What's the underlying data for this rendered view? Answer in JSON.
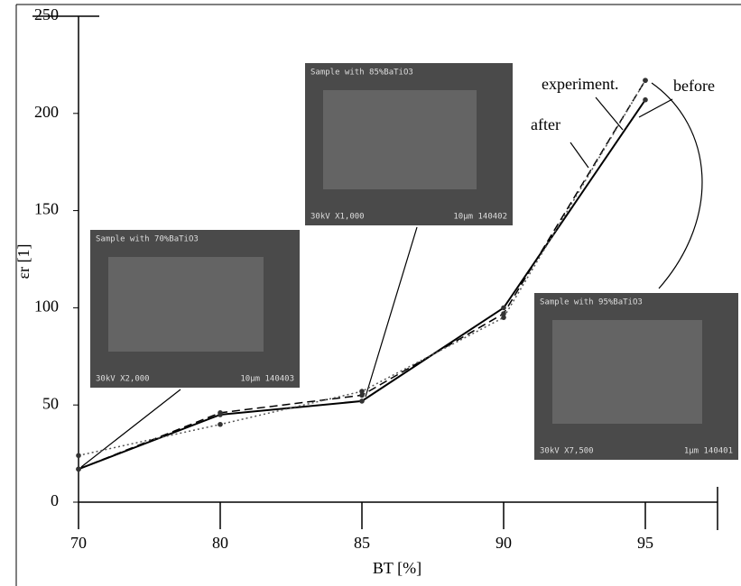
{
  "chart_data": {
    "type": "line",
    "x_label": "BT [%]",
    "y_label": "εr [1]",
    "categories": [
      "70",
      "80",
      "85",
      "90",
      "95"
    ],
    "series": [
      {
        "name": "experiment.",
        "color": "#000000",
        "style": "dashed",
        "values": [
          17,
          46,
          55,
          97,
          217
        ]
      },
      {
        "name": "before",
        "color": "#000000",
        "style": "solid",
        "values": [
          17,
          45,
          52,
          100,
          207
        ]
      },
      {
        "name": "after",
        "color": "#555555",
        "style": "dotted",
        "values": [
          24,
          40,
          57,
          95,
          217
        ]
      }
    ],
    "ylim": [
      0,
      250
    ],
    "yticks": [
      0,
      50,
      100,
      150,
      200,
      250
    ],
    "grid": false,
    "insets": [
      {
        "caption": "Sample with 70%BaTiO3",
        "info": "30kV X2,000",
        "bar": "10µm 140403"
      },
      {
        "caption": "Sample with 85%BaTiO3",
        "info": "30kV X1,000",
        "bar": "10µm 140402"
      },
      {
        "caption": "Sample with 95%BaTiO3",
        "info": "30kV X7,500",
        "bar": "1µm 140401"
      }
    ]
  }
}
